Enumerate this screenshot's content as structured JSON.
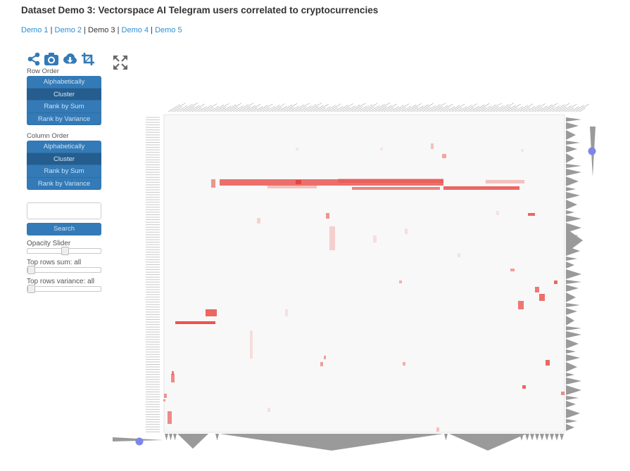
{
  "page": {
    "title": "Dataset Demo 3: Vectorspace AI Telegram users correlated to cryptocurrencies"
  },
  "nav": {
    "links": [
      "Demo 1",
      "Demo 2",
      "Demo 3",
      "Demo 4",
      "Demo 5"
    ],
    "separator": " | ",
    "current": "Demo 3"
  },
  "toolbar": {
    "icons": [
      "share-icon",
      "camera-icon",
      "cloud-download-icon",
      "crop-icon"
    ],
    "expand_icon": "expand-icon"
  },
  "row_order": {
    "label": "Row Order",
    "options": [
      "Alphabetically",
      "Cluster",
      "Rank by Sum",
      "Rank by Variance"
    ],
    "selected": "Cluster"
  },
  "column_order": {
    "label": "Column Order",
    "options": [
      "Alphabetically",
      "Cluster",
      "Rank by Sum",
      "Rank by Variance"
    ],
    "selected": "Cluster"
  },
  "search": {
    "value": "",
    "placeholder": "",
    "button_label": "Search"
  },
  "sliders": {
    "opacity": {
      "label": "Opacity Slider",
      "value": 0.5
    },
    "top_rows_sum": {
      "label": "Top rows sum: all",
      "value": 0
    },
    "top_rows_variance": {
      "label": "Top rows variance: all",
      "value": 0
    }
  },
  "colors": {
    "accent": "#337ab7",
    "accent_active": "#255d8f",
    "link": "#2a8fd6",
    "heat": "#e8413c",
    "dendro": "#9a9a9a",
    "dot": "#7d86e8"
  }
}
